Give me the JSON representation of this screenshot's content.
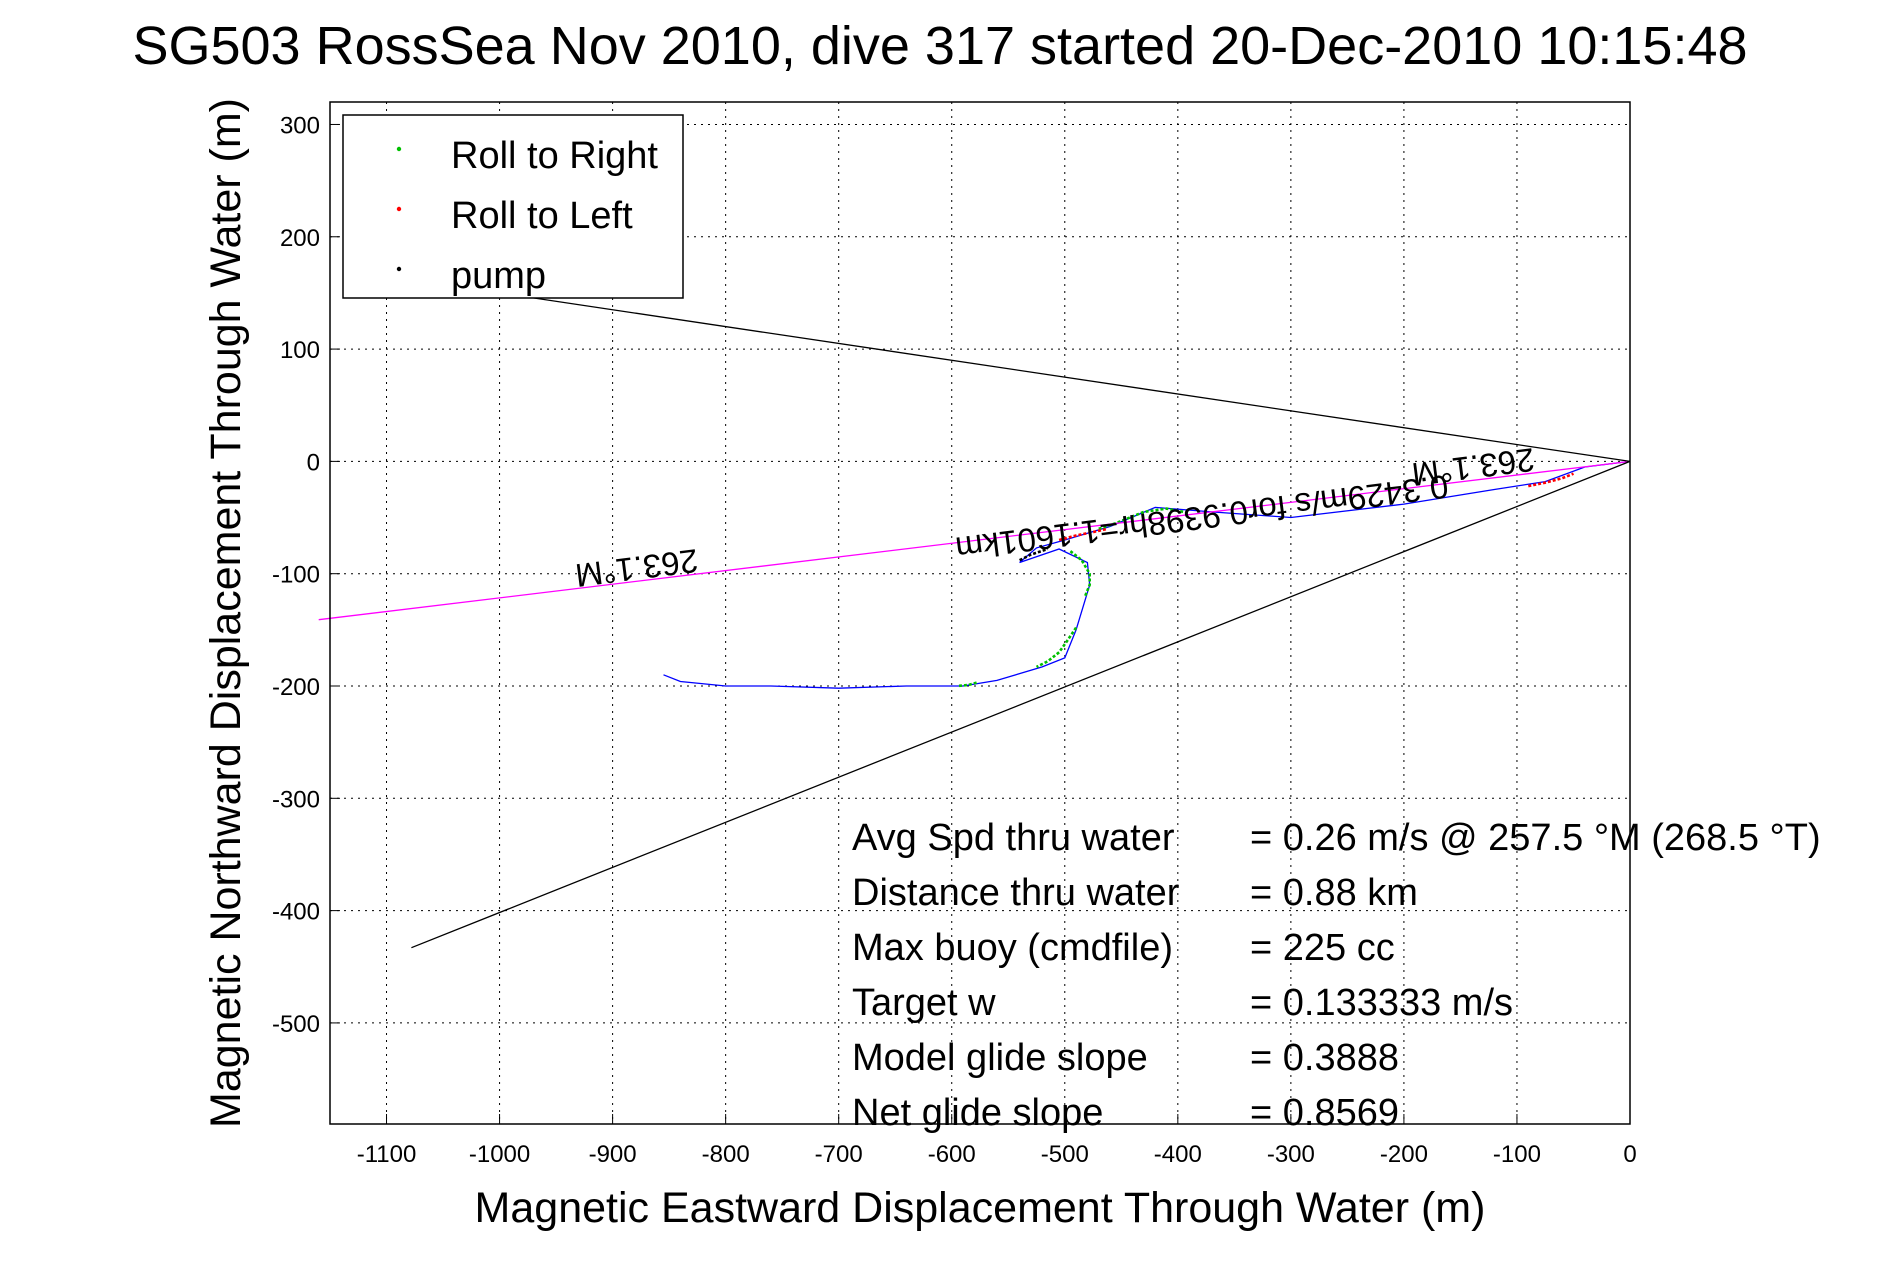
{
  "chart_data": {
    "type": "line",
    "title": "SG503 RossSea Nov 2010, dive 317 started 20-Dec-2010 10:15:48",
    "xlabel": "Magnetic Eastward Displacement Through Water (m)",
    "ylabel": "Magnetic Northward Displacement Through Water (m)",
    "xlim": [
      -1150,
      0
    ],
    "ylim": [
      -590,
      320
    ],
    "grid": true,
    "x_ticks": [
      -1100,
      -1000,
      -900,
      -800,
      -700,
      -600,
      -500,
      -400,
      -300,
      -200,
      -100,
      0
    ],
    "y_ticks": [
      300,
      200,
      100,
      0,
      -100,
      -200,
      -300,
      -400,
      -500
    ],
    "legend": {
      "placement": "top-left",
      "entries": [
        {
          "label": "Roll to Right",
          "color": "#00c000"
        },
        {
          "label": "Roll to Left",
          "color": "#ff0000"
        },
        {
          "label": "pump",
          "color": "#000000"
        }
      ]
    },
    "series": [
      {
        "name": "track",
        "color": "#0000ff",
        "x": [
          0,
          -40,
          -75,
          -120,
          -200,
          -300,
          -370,
          -420,
          -460,
          -500,
          -525,
          -540,
          -505,
          -480,
          -478,
          -490,
          -500,
          -520,
          -560,
          -590,
          -640,
          -700,
          -760,
          -800,
          -840,
          -855
        ],
        "y": [
          0,
          -5,
          -18,
          -25,
          -38,
          -50,
          -45,
          -41,
          -58,
          -70,
          -77,
          -90,
          -78,
          -90,
          -110,
          -150,
          -175,
          -183,
          -195,
          -200,
          -200,
          -202,
          -200,
          -200,
          -196,
          -190
        ]
      },
      {
        "name": "roll-right-segments",
        "color": "#00c000",
        "segments": [
          {
            "x": [
              -470,
              -455,
              -430,
              -410,
              -395
            ],
            "y": [
              -60,
              -55,
              -45,
              -42,
              -45
            ]
          },
          {
            "x": [
              -495,
              -485,
              -478,
              -478,
              -482
            ],
            "y": [
              -80,
              -88,
              -100,
              -110,
              -120
            ]
          },
          {
            "x": [
              -490,
              -498,
              -505,
              -515,
              -525
            ],
            "y": [
              -148,
              -160,
              -170,
              -178,
              -183
            ]
          },
          {
            "x": [
              -578,
              -585,
              -595
            ],
            "y": [
              -197,
              -199,
              -200
            ]
          }
        ]
      },
      {
        "name": "roll-left-segments",
        "color": "#ff0000",
        "segments": [
          {
            "x": [
              -90,
              -75,
              -60,
              -50
            ],
            "y": [
              -22,
              -19,
              -15,
              -11
            ]
          },
          {
            "x": [
              -505,
              -490,
              -475,
              -462
            ],
            "y": [
              -70,
              -66,
              -63,
              -60
            ]
          }
        ]
      },
      {
        "name": "pump-segments",
        "color": "#000000",
        "segments": [
          {
            "x": [
              -540,
              -530,
              -515
            ],
            "y": [
              -88,
              -83,
              -78
            ]
          }
        ]
      },
      {
        "name": "current-vector",
        "color": "#ff00ff",
        "x": [
          0,
          -1160
        ],
        "y": [
          0,
          -141
        ]
      },
      {
        "name": "heading-cone-upper",
        "color": "#000000",
        "x": [
          0,
          -1000
        ],
        "y": [
          0,
          150
        ]
      },
      {
        "name": "heading-cone-lower",
        "color": "#000000",
        "x": [
          0,
          -1078
        ],
        "y": [
          0,
          -433
        ]
      }
    ],
    "annotations": [
      {
        "text": "263.1°M",
        "x": -880,
        "y": -85,
        "rotate": 172.7
      },
      {
        "text": "263.1°M",
        "x": -140,
        "y": 5,
        "rotate": 172.7
      },
      {
        "text": "0.3429m/s for0.9398hr=1.1601km",
        "x": -380,
        "y": -40,
        "rotate": 172.7
      }
    ],
    "stats": [
      {
        "label": "Avg Spd thru water",
        "value": "=  0.26 m/s @ 257.5 °M (268.5 °T)"
      },
      {
        "label": "Distance thru water",
        "value": "=  0.88 km"
      },
      {
        "label": "Max buoy (cmdfile)",
        "value": "= 225 cc"
      },
      {
        "label": "Target w",
        "value": "= 0.133333 m/s"
      },
      {
        "label": "Model glide slope",
        "value": "= 0.3888"
      },
      {
        "label": "Net glide slope",
        "value": "= 0.8569"
      }
    ]
  }
}
